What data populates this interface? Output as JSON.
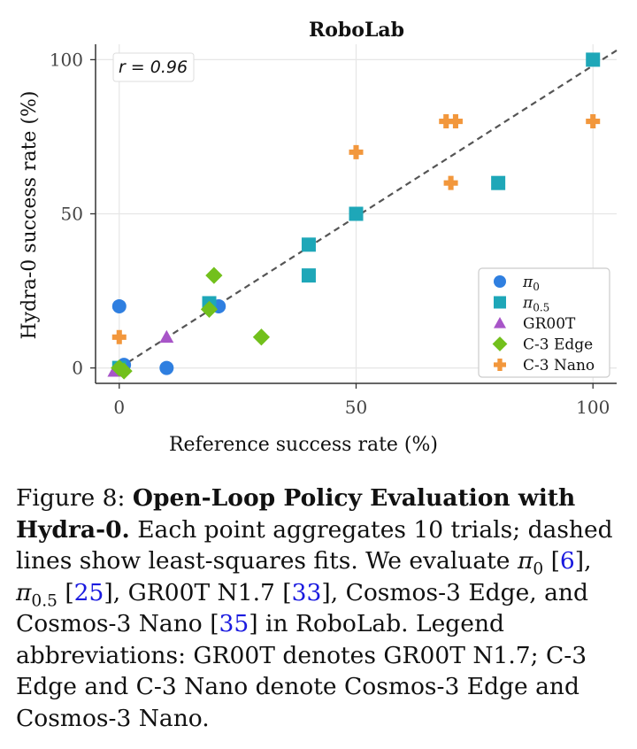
{
  "chart_data": {
    "type": "scatter",
    "title": "RoboLab",
    "xlabel": "Reference success rate (%)",
    "ylabel": "Hydra-0 success rate (%)",
    "xlim": [
      -5,
      105
    ],
    "ylim": [
      -5,
      105
    ],
    "xticks": [
      0,
      50,
      100
    ],
    "yticks": [
      0,
      50,
      100
    ],
    "grid": true,
    "legend_position": "lower-right",
    "annotation": "r = 0.96",
    "fit_line": {
      "style": "dashed",
      "color": "#555555",
      "x": [
        0,
        105
      ],
      "y": [
        0,
        103
      ]
    },
    "series": [
      {
        "name": "π0",
        "marker": "circle",
        "color": "#2f7fe0",
        "points": [
          [
            0,
            20
          ],
          [
            0,
            0
          ],
          [
            1,
            1
          ],
          [
            10,
            0
          ],
          [
            21,
            20
          ]
        ]
      },
      {
        "name": "π0.5",
        "marker": "square",
        "color": "#1ea7b8",
        "points": [
          [
            0,
            0
          ],
          [
            19,
            21
          ],
          [
            40,
            40
          ],
          [
            40,
            30
          ],
          [
            50,
            50
          ],
          [
            80,
            60
          ],
          [
            100,
            100
          ]
        ]
      },
      {
        "name": "GR00T",
        "marker": "triangle",
        "color": "#a855c8",
        "points": [
          [
            -1,
            -1
          ],
          [
            0,
            0
          ],
          [
            10,
            10
          ]
        ]
      },
      {
        "name": "C-3 Edge",
        "marker": "diamond",
        "color": "#72c01c",
        "points": [
          [
            0,
            0
          ],
          [
            1,
            -1
          ],
          [
            19,
            19
          ],
          [
            20,
            30
          ],
          [
            30,
            10
          ]
        ]
      },
      {
        "name": "C-3 Nano",
        "marker": "plus",
        "color": "#f2973c",
        "points": [
          [
            0,
            10
          ],
          [
            50,
            70
          ],
          [
            69,
            80
          ],
          [
            71,
            80
          ],
          [
            70,
            60
          ],
          [
            100,
            80
          ]
        ]
      }
    ]
  },
  "legend": {
    "items": [
      {
        "base": "π",
        "sub": "0"
      },
      {
        "base": "π",
        "sub": "0.5"
      },
      {
        "base": "GR00T",
        "sub": ""
      },
      {
        "base": "C-3 Edge",
        "sub": ""
      },
      {
        "base": "C-3 Nano",
        "sub": ""
      }
    ]
  },
  "caption": {
    "figure_label": "Figure 8:",
    "bold_title": "Open-Loop Policy Evaluation with Hydra-0.",
    "text_1": "Each point aggregates 10 trials; dashed lines show least-squares fits. We evaluate",
    "pi0_base": "π",
    "pi0_sub": "0",
    "ref_6": "6",
    "pi05_base": "π",
    "pi05_sub": "0.5",
    "ref_25": "25",
    "text_2": ", GR00T N1.7",
    "ref_33": "33",
    "text_3": ", Cosmos-3 Edge, and Cosmos-3 Nano",
    "ref_35": "35",
    "text_4": "in RoboLab. Legend abbreviations: GR00T denotes GR00T N1.7; C-3 Edge and C-3 Nano denote Cosmos-3 Edge and Cosmos-3 Nano."
  }
}
